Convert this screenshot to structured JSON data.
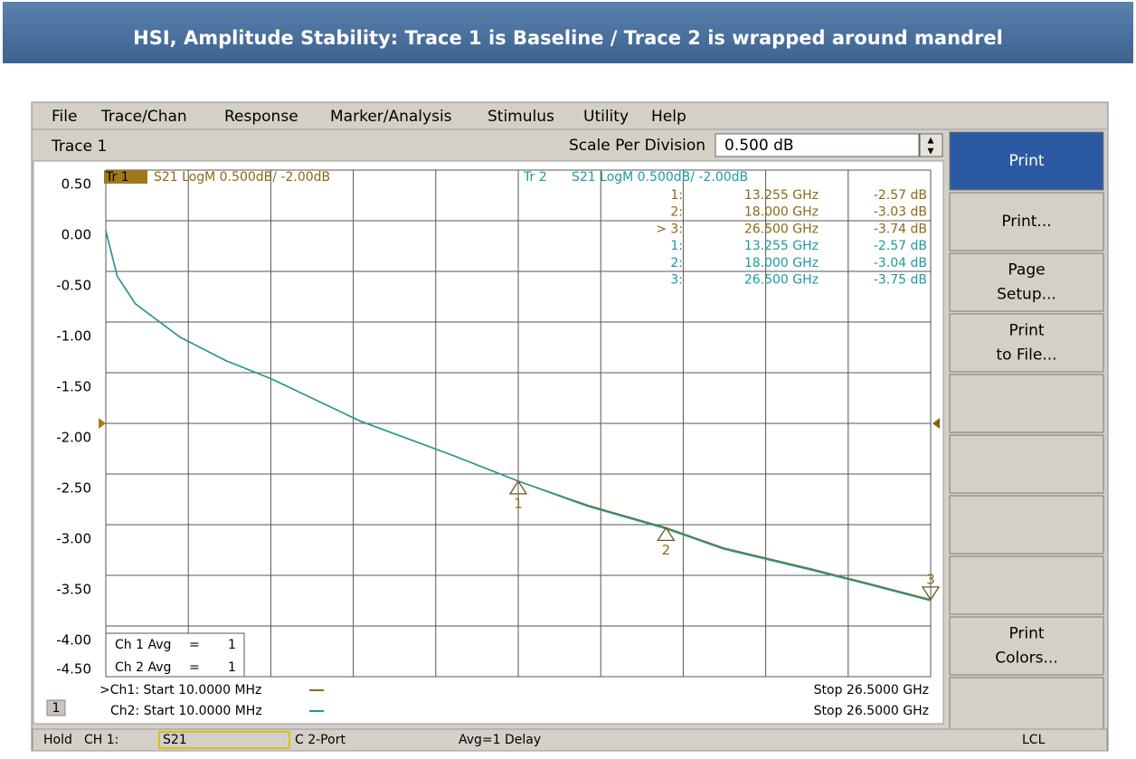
{
  "banner": {
    "title": "HSI, Amplitude Stability: Trace 1 is Baseline / Trace 2 is wrapped around mandrel"
  },
  "menu": [
    "File",
    "Trace/Chan",
    "Response",
    "Marker/Analysis",
    "Stimulus",
    "Utility",
    "Help"
  ],
  "toolbar": {
    "trace": "Trace 1",
    "scale_label": "Scale Per Division",
    "scale_value": "0.500 dB"
  },
  "softkeys": [
    [
      "Print"
    ],
    [
      "Print..."
    ],
    [
      "Page",
      "Setup..."
    ],
    [
      "Print",
      "to File..."
    ],
    [
      "Print",
      "Colors..."
    ]
  ],
  "chart_data": {
    "type": "line",
    "x": [
      0.01,
      0.38,
      0.96,
      2.4,
      3.86,
      5.32,
      8.2,
      11.1,
      13.255,
      15.5,
      18,
      19.85,
      22.7,
      24.5,
      26.5
    ],
    "xlim": [
      0.01,
      26.5
    ],
    "xticks": [
      0.01,
      2.659,
      5.308,
      7.957,
      10.606,
      13.255,
      15.904,
      18.553,
      21.202,
      23.851,
      26.5
    ],
    "ylim": [
      -4.5,
      0.5
    ],
    "yticks": [
      {
        "value": 0.5,
        "label": "0.50"
      },
      {
        "value": 0,
        "label": "0.00"
      },
      {
        "value": -0.5,
        "label": "-0.50"
      },
      {
        "value": -1,
        "label": "-1.00"
      },
      {
        "value": -1.5,
        "label": "-1.50"
      },
      {
        "value": -2,
        "label": "-2.00"
      },
      {
        "value": -2.5,
        "label": "-2.50"
      },
      {
        "value": -3,
        "label": "-3.00"
      },
      {
        "value": -3.5,
        "label": "-3.50"
      },
      {
        "value": -4,
        "label": "-4.00"
      },
      {
        "value": -4.5,
        "label": "-4.50"
      }
    ],
    "grid": true,
    "reference_level": -2,
    "series": [
      {
        "name": "Tr 1",
        "description": "S21 LogM 0.500dB/  -2.00dB",
        "color": "#8a6a14",
        "values": [
          -0.1,
          -0.55,
          -0.82,
          -1.15,
          -1.38,
          -1.56,
          -1.98,
          -2.31,
          -2.57,
          -2.81,
          -3.03,
          -3.23,
          -3.44,
          -3.58,
          -3.74
        ],
        "markers": [
          {
            "label": "1",
            "x": 13.255,
            "y": -2.57
          },
          {
            "label": "2",
            "x": 18,
            "y": -3.03
          },
          {
            "label": "3",
            "x": 26.5,
            "y": -3.74
          }
        ],
        "readout": [
          [
            "1:",
            "13.255 GHz",
            "-2.57 dB"
          ],
          [
            "2:",
            "18.000 GHz",
            "-3.03 dB"
          ],
          [
            "> 3:",
            "26.500 GHz",
            "-3.74 dB"
          ]
        ]
      },
      {
        "name": "Tr 2",
        "description": "S21 LogM 0.500dB/  -2.00dB",
        "color": "#1e9a9a",
        "values": [
          -0.1,
          -0.55,
          -0.82,
          -1.15,
          -1.38,
          -1.56,
          -1.98,
          -2.31,
          -2.57,
          -2.82,
          -3.04,
          -3.24,
          -3.45,
          -3.59,
          -3.75
        ],
        "readout": [
          [
            "1:",
            "13.255 GHz",
            "-2.57 dB"
          ],
          [
            "2:",
            "18.000 GHz",
            "-3.04 dB"
          ],
          [
            "3:",
            "26.500 GHz",
            "-3.75 dB"
          ]
        ]
      }
    ],
    "averaging": [
      [
        "Ch 1 Avg",
        "=",
        "1"
      ],
      [
        "Ch 2 Avg",
        "=",
        "1"
      ]
    ],
    "channels": [
      {
        "start": ">Ch1: Start  10.0000 MHz",
        "stop": "Stop  26.5000 GHz"
      },
      {
        "start": "Ch2: Start  10.0000 MHz",
        "stop": "Stop  26.5000 GHz"
      }
    ],
    "channel_box": "1"
  },
  "status": [
    "Hold",
    "CH 1:",
    "S21",
    "C  2-Port",
    "Avg=1 Delay",
    "LCL"
  ]
}
